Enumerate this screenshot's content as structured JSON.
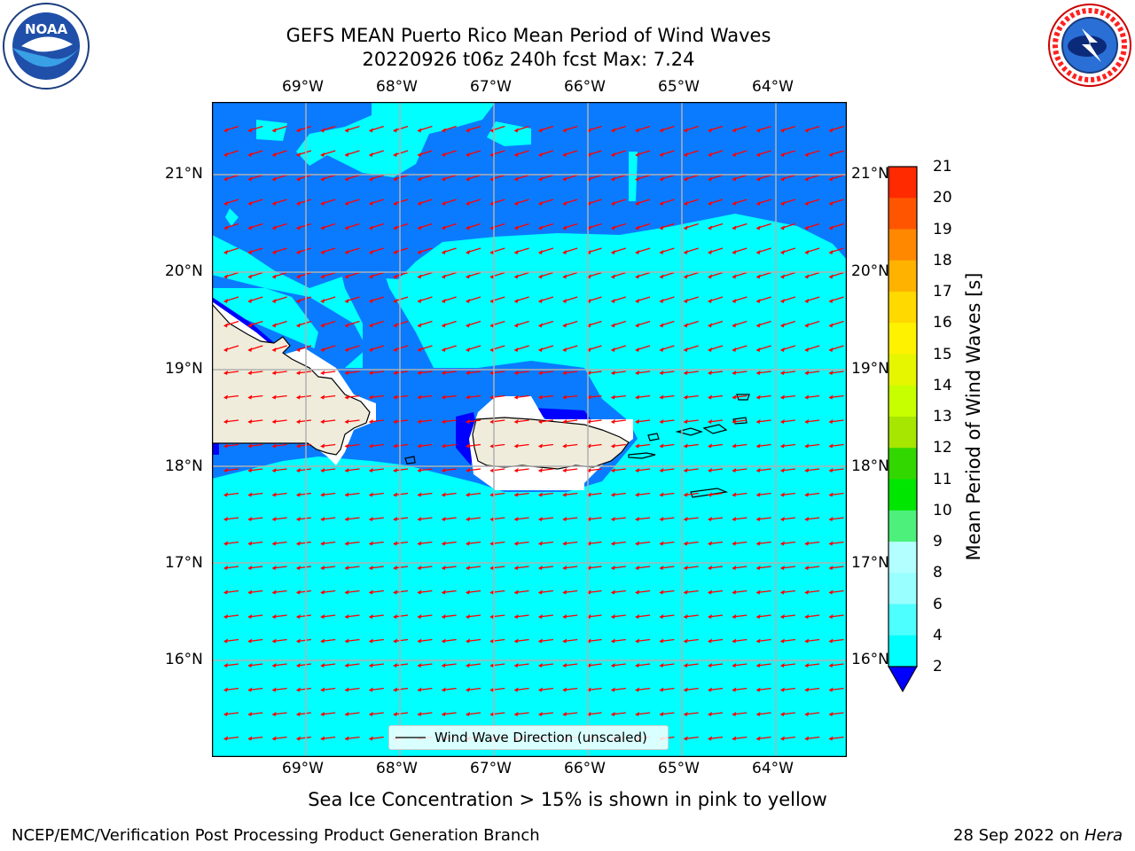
{
  "title": {
    "line1": "GEFS MEAN Puerto Rico Mean Period of Wind Waves",
    "line2": "20220926 t06z 240h fcst   Max: 7.24"
  },
  "logos": {
    "left": {
      "name": "noaa-logo",
      "text": "NOAA",
      "ring_text": "NATIONAL OCEANIC AND ATMOSPHERIC ADMINISTRATION · U.S. DEPARTMENT OF COMMERCE"
    },
    "right": {
      "name": "nws-logo",
      "ring_text": "NATIONAL WEATHER SERVICE"
    }
  },
  "map": {
    "lon_ticks": [
      "69°W",
      "68°W",
      "67°W",
      "66°W",
      "65°W",
      "64°W"
    ],
    "lat_ticks": [
      "21°N",
      "20°N",
      "19°N",
      "18°N",
      "17°N",
      "16°N"
    ],
    "grid": true,
    "arrow_color": "#ff0000",
    "land_color": "#efecdc",
    "colors": {
      "deep_blue": "#0000ff",
      "blue": "#0a7bff",
      "cyan": "#00ffff"
    }
  },
  "legend": {
    "label": "Wind Wave Direction (unscaled)",
    "placement": "bottom-center"
  },
  "colorbar": {
    "label": "Mean Period of Wind Waves [s]",
    "ticks": [
      "2",
      "4",
      "6",
      "8",
      "9",
      "10",
      "11",
      "12",
      "13",
      "14",
      "15",
      "16",
      "17",
      "18",
      "19",
      "20",
      "21"
    ],
    "colors": [
      "#0a7bff",
      "#00ffff",
      "#4dffff",
      "#99ffff",
      "#b3ffff",
      "#4cf07a",
      "#00e600",
      "#33d700",
      "#a6e600",
      "#c8ff00",
      "#e6f500",
      "#fff200",
      "#ffd900",
      "#ffb300",
      "#ff8800",
      "#ff5500",
      "#ff2a00",
      "#ff0000"
    ],
    "underflow_color": "#0000ff"
  },
  "footer": {
    "sea_ice": "Sea Ice Concentration > 15% is shown in pink to yellow",
    "left": "NCEP/EMC/Verification Post Processing Product Generation Branch",
    "right_prefix": "28 Sep 2022 on ",
    "right_machine": "Hera"
  }
}
